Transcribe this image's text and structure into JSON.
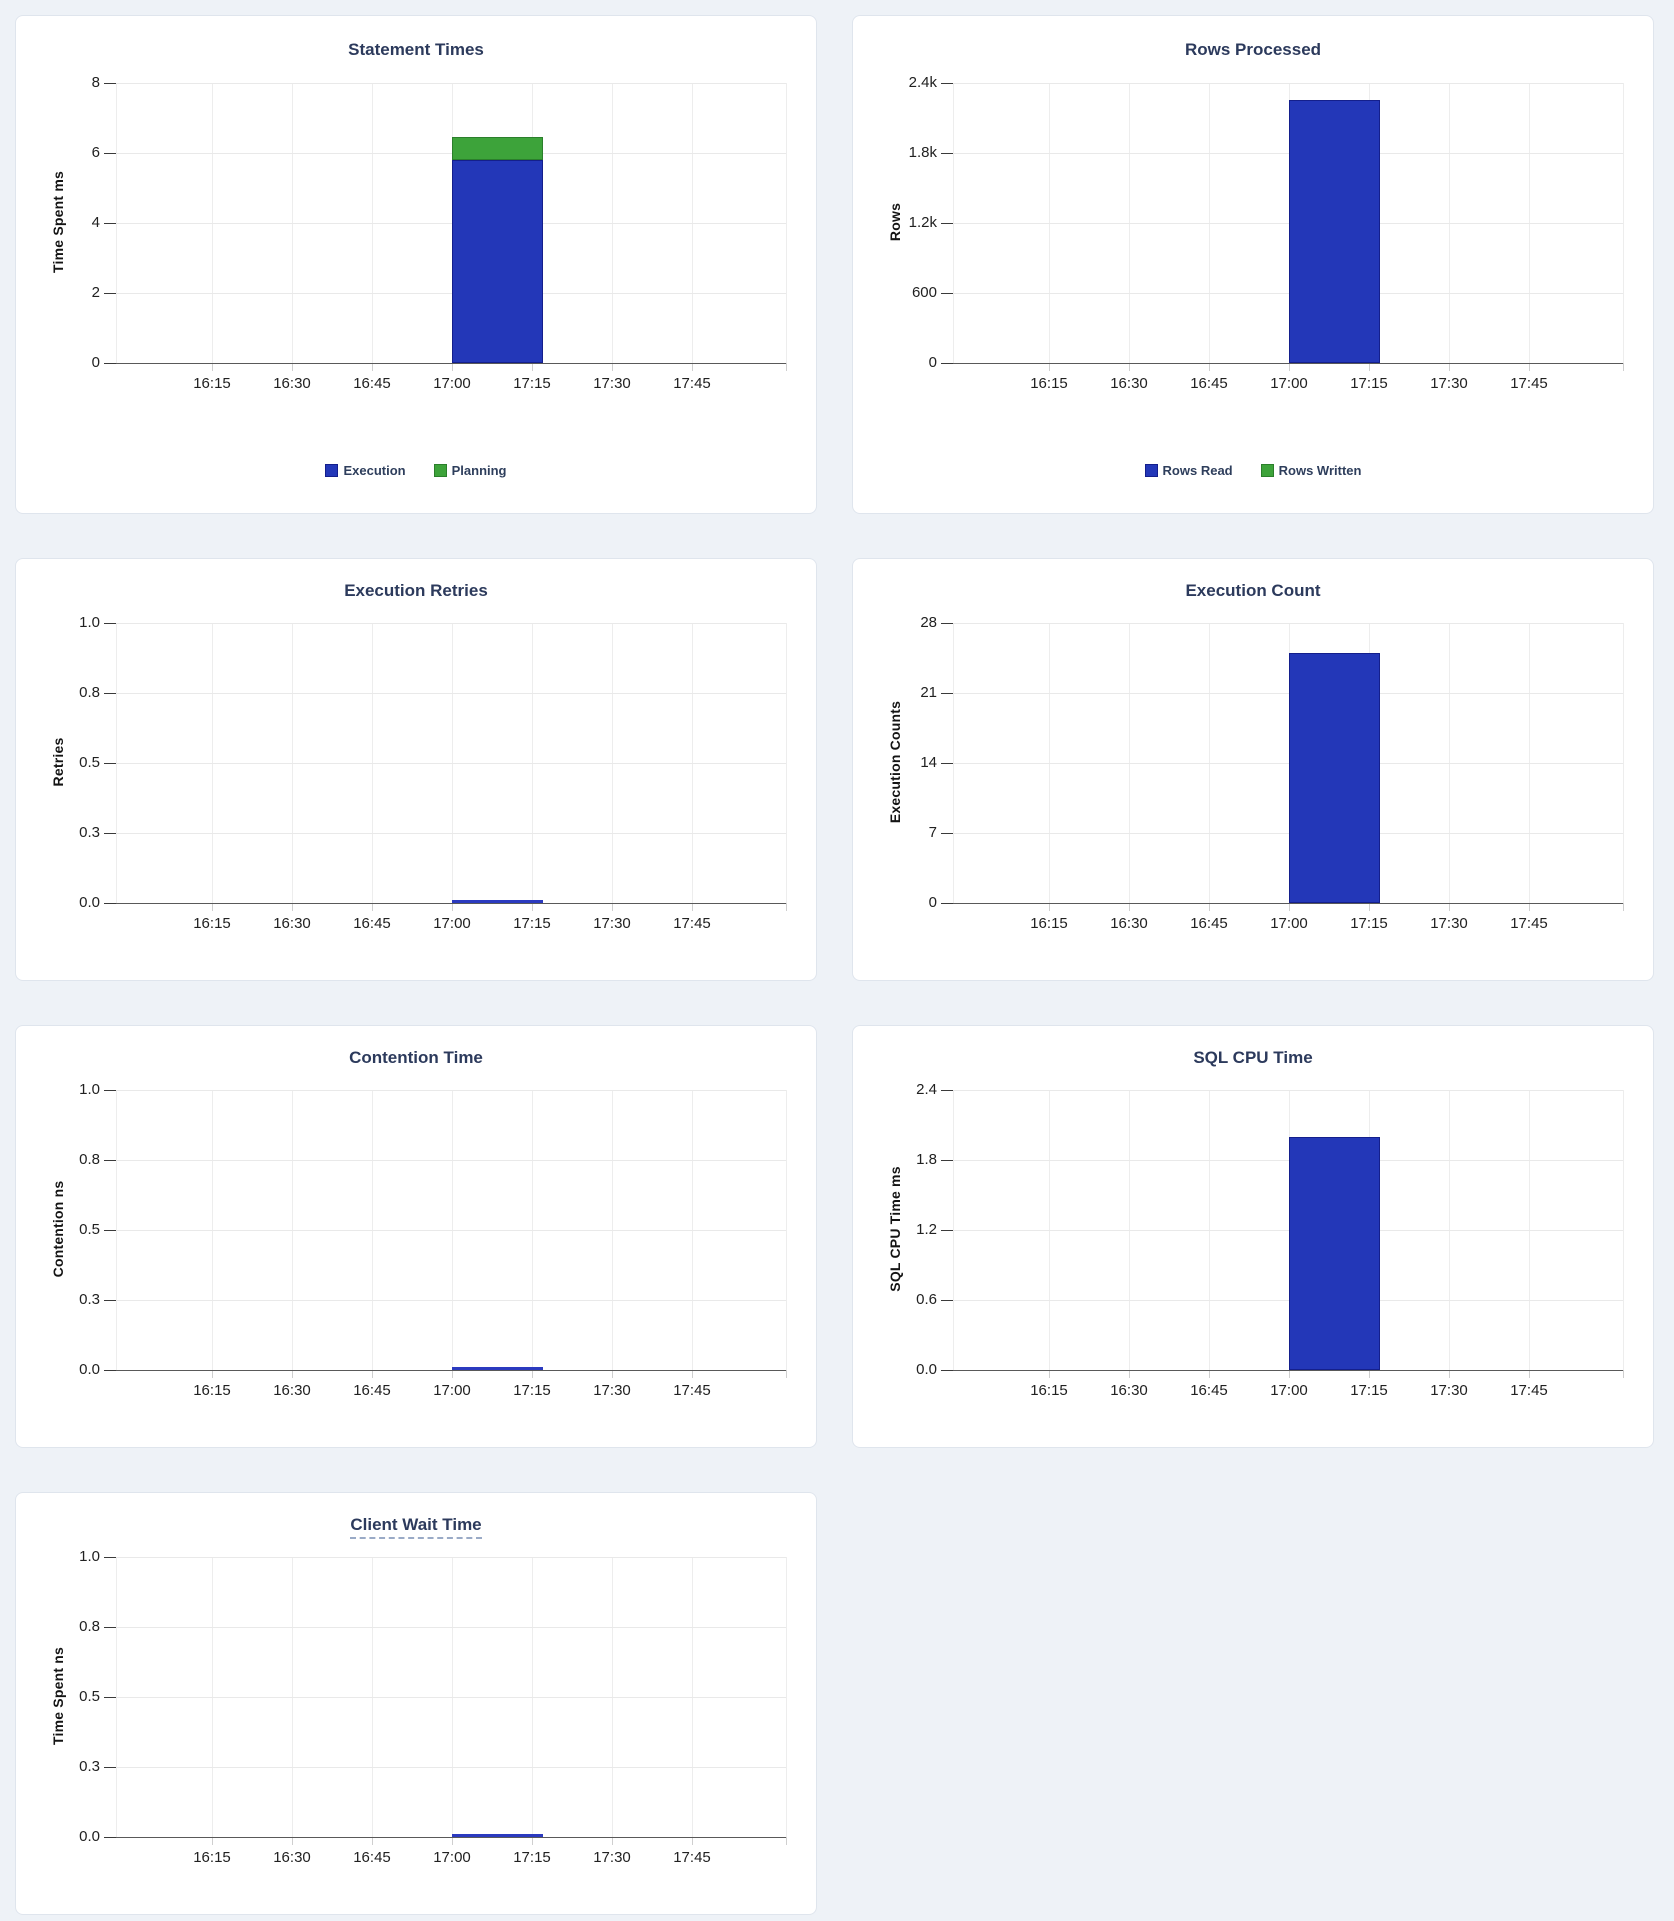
{
  "colors": {
    "page_background": "#eef2f7",
    "card_background": "#ffffff",
    "card_border": "#dfe5ed",
    "title": "#2c3a5c",
    "tick_text": "#212121",
    "axis_label_text": "#141414",
    "gridline": "#e9e9e9",
    "gridline_vertical": "#ededed",
    "baseline": "#595959",
    "tick_mark": "#3a3a3a",
    "stub": "#cfcfcf",
    "zero_line": "#2b3abf",
    "blue": {
      "fill": "#2337b8",
      "stroke": "#141f8c"
    },
    "green": {
      "fill": "#3da33a",
      "stroke": "#2b7f2b"
    }
  },
  "x_ticks": [
    "16:15",
    "16:30",
    "16:45",
    "17:00",
    "17:15",
    "17:30",
    "17:45"
  ],
  "x_window": {
    "start": "17:00",
    "end": "17:17"
  },
  "chart_data": [
    {
      "type": "bar",
      "title": "Statement Times",
      "title_underlined": false,
      "ylabel": "Time Spent ms",
      "y_ticks": [
        "8",
        "6",
        "4",
        "2",
        "0"
      ],
      "ymax": 8,
      "ylim": [
        0,
        8
      ],
      "legend": [
        {
          "label": "Execution",
          "color": "blue"
        },
        {
          "label": "Planning",
          "color": "green"
        }
      ],
      "series": [
        {
          "name": "Execution",
          "color": "blue",
          "value": 5.8
        },
        {
          "name": "Planning",
          "color": "green",
          "value": 0.65
        }
      ]
    },
    {
      "type": "bar",
      "title": "Rows Processed",
      "title_underlined": false,
      "ylabel": "Rows",
      "y_ticks": [
        "2.4k",
        "1.8k",
        "1.2k",
        "600",
        "0"
      ],
      "ymax": 2400,
      "ylim": [
        0,
        2400
      ],
      "legend": [
        {
          "label": "Rows Read",
          "color": "blue"
        },
        {
          "label": "Rows Written",
          "color": "green"
        }
      ],
      "series": [
        {
          "name": "Rows Read",
          "color": "blue",
          "value": 2250
        },
        {
          "name": "Rows Written",
          "color": "green",
          "value": 0
        }
      ]
    },
    {
      "type": "line",
      "title": "Execution Retries",
      "title_underlined": false,
      "ylabel": "Retries",
      "y_ticks": [
        "1.0",
        "0.8",
        "0.5",
        "0.3",
        "0.0"
      ],
      "ymax": 1,
      "ylim": [
        0,
        1
      ],
      "legend": [],
      "series": [
        {
          "name": "Retries",
          "color": "blue",
          "value": 0
        }
      ]
    },
    {
      "type": "bar",
      "title": "Execution Count",
      "title_underlined": false,
      "ylabel": "Execution Counts",
      "y_ticks": [
        "28",
        "21",
        "14",
        "7",
        "0"
      ],
      "ymax": 28,
      "ylim": [
        0,
        28
      ],
      "legend": [],
      "series": [
        {
          "name": "Execution Count",
          "color": "blue",
          "value": 25
        }
      ]
    },
    {
      "type": "line",
      "title": "Contention Time",
      "title_underlined": false,
      "ylabel": "Contention ns",
      "y_ticks": [
        "1.0",
        "0.8",
        "0.5",
        "0.3",
        "0.0"
      ],
      "ymax": 1,
      "ylim": [
        0,
        1
      ],
      "legend": [],
      "series": [
        {
          "name": "Contention",
          "color": "blue",
          "value": 0
        }
      ]
    },
    {
      "type": "bar",
      "title": "SQL CPU Time",
      "title_underlined": false,
      "ylabel": "SQL CPU Time ms",
      "y_ticks": [
        "2.4",
        "1.8",
        "1.2",
        "0.6",
        "0.0"
      ],
      "ymax": 2.4,
      "ylim": [
        0,
        2.4
      ],
      "legend": [],
      "series": [
        {
          "name": "SQL CPU Time",
          "color": "blue",
          "value": 2.0
        }
      ]
    },
    {
      "type": "line",
      "title": "Client Wait Time",
      "title_underlined": true,
      "ylabel": "Time Spent ns",
      "y_ticks": [
        "1.0",
        "0.8",
        "0.5",
        "0.3",
        "0.0"
      ],
      "ymax": 1,
      "ylim": [
        0,
        1
      ],
      "legend": [],
      "series": [
        {
          "name": "Client Wait",
          "color": "blue",
          "value": 0
        }
      ]
    }
  ]
}
